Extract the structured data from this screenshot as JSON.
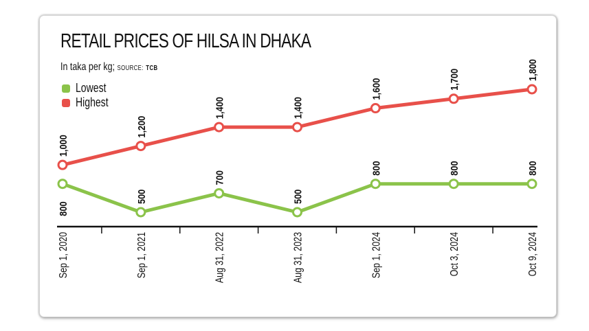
{
  "title": "RETAIL PRICES OF HILSA IN DHAKA",
  "subtitle": {
    "unit": "In taka per kg;",
    "source_label": "SOURCE:",
    "source_name": "TCB"
  },
  "legend": [
    {
      "label": "Lowest",
      "color": "#8bc34a"
    },
    {
      "label": "Highest",
      "color": "#e8504a"
    }
  ],
  "chart_data": {
    "type": "line",
    "title": "RETAIL PRICES OF HILSA IN DHAKA",
    "subtitle": "In taka per kg; SOURCE: TCB",
    "xlabel": "",
    "ylabel": "Taka per kg",
    "categories": [
      "Sep 1, 2020",
      "Sep 1, 2021",
      "Aug 31, 2022",
      "Aug 31, 2023",
      "Sep 1, 2024",
      "Oct 3, 2024",
      "Oct 9, 2024"
    ],
    "series": [
      {
        "name": "Lowest",
        "color": "#8bc34a",
        "values": [
          800,
          500,
          700,
          500,
          800,
          800,
          800
        ],
        "labels": [
          "800",
          "500",
          "700",
          "500",
          "800",
          "800",
          "800"
        ]
      },
      {
        "name": "Highest",
        "color": "#e8504a",
        "values": [
          1000,
          1200,
          1400,
          1400,
          1600,
          1700,
          1800
        ],
        "labels": [
          "1,000",
          "1,200",
          "1,400",
          "1,400",
          "1,600",
          "1,700",
          "1,800"
        ]
      }
    ],
    "legend_position": "top-left",
    "grid": false,
    "y_axis_visible": false
  }
}
